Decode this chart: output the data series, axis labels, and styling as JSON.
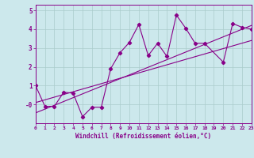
{
  "title": "",
  "xlabel": "Windchill (Refroidissement éolien,°C)",
  "ylabel": "",
  "bg_color": "#cce8ec",
  "grid_color": "#aacccc",
  "line_color": "#880088",
  "xlim": [
    0,
    23
  ],
  "ylim": [
    -1.0,
    5.3
  ],
  "xticks": [
    0,
    1,
    2,
    3,
    4,
    5,
    6,
    7,
    8,
    9,
    10,
    11,
    12,
    13,
    14,
    15,
    16,
    17,
    18,
    19,
    20,
    21,
    22,
    23
  ],
  "yticks": [
    0,
    1,
    2,
    3,
    4,
    5
  ],
  "ytick_labels": [
    "-0",
    "1",
    "2",
    "3",
    "4",
    "5"
  ],
  "series": [
    {
      "x": [
        0,
        1,
        2,
        3,
        4,
        5,
        6,
        7,
        8,
        9,
        10,
        11,
        12,
        13,
        14,
        15,
        16,
        17,
        18,
        20,
        21,
        22,
        23
      ],
      "y": [
        1.0,
        -0.1,
        -0.1,
        0.65,
        0.6,
        -0.65,
        -0.15,
        -0.15,
        1.9,
        2.75,
        3.3,
        4.25,
        2.6,
        3.25,
        2.55,
        4.75,
        4.05,
        3.25,
        3.25,
        2.25,
        4.3,
        4.1,
        4.0
      ]
    },
    {
      "x": [
        0,
        23
      ],
      "y": [
        0.1,
        3.4
      ]
    },
    {
      "x": [
        0,
        23
      ],
      "y": [
        -0.45,
        4.2
      ]
    }
  ]
}
